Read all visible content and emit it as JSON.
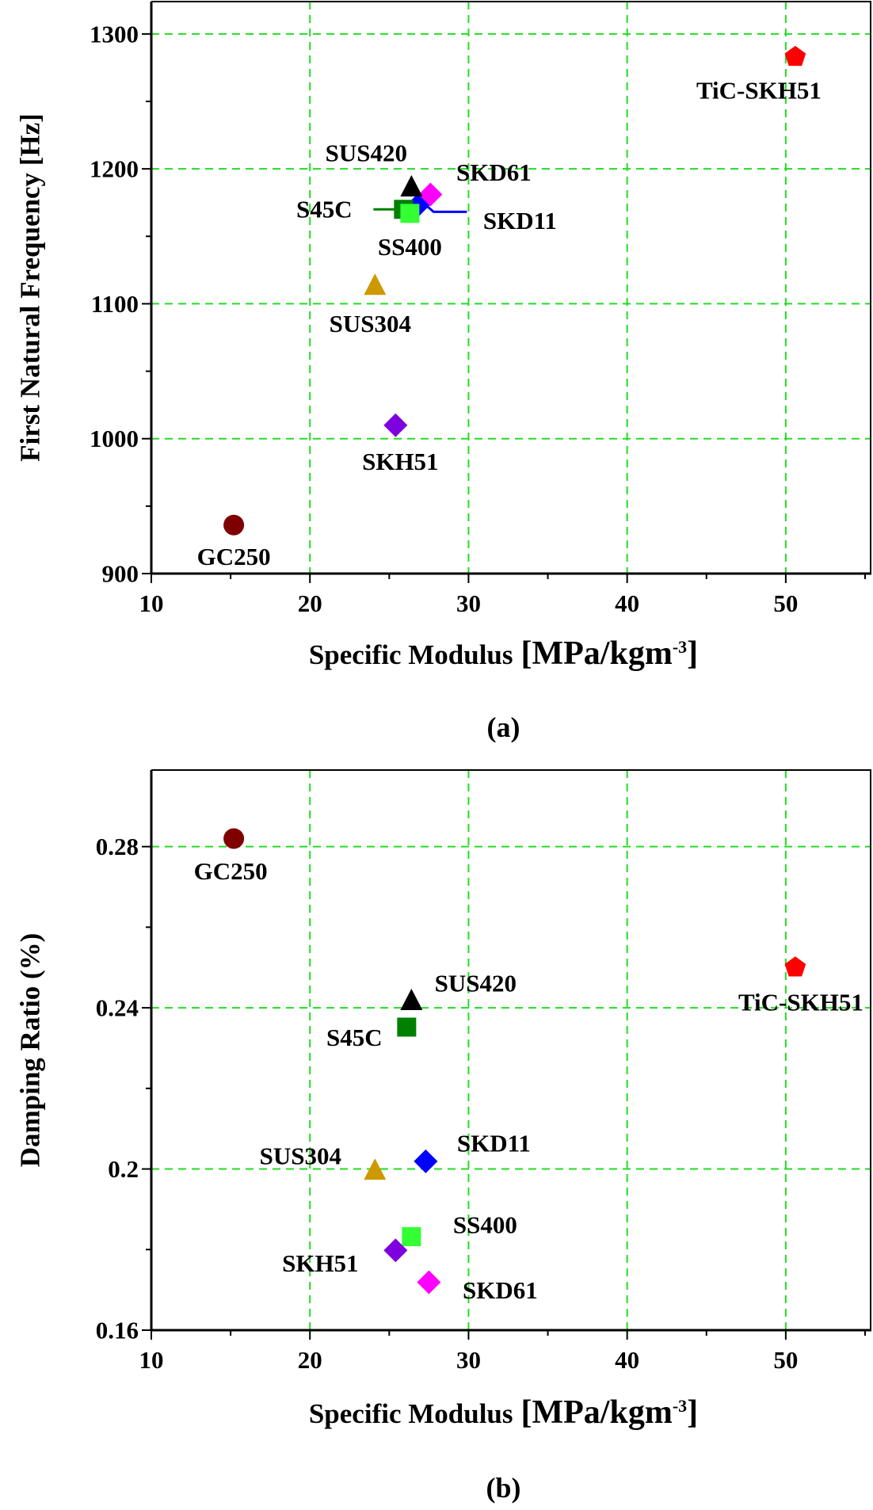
{
  "colors": {
    "grid": "#22dd22",
    "axis": "#000000"
  },
  "chart_data": [
    {
      "type": "scatter",
      "caption": "(a)",
      "xlabel": "Specific Modulus",
      "xlabel_unit": "[MPa/kgm",
      "xlabel_sup": "-3",
      "xlabel_close": "]",
      "ylabel": "First Natural Frequency [Hz]",
      "xlim": [
        10,
        55.4
      ],
      "ylim": [
        900,
        1324
      ],
      "xticks": [
        10,
        20,
        30,
        40,
        50
      ],
      "yticks": [
        900,
        1000,
        1100,
        1200,
        1300
      ],
      "xtick_labels": [
        "10",
        "20",
        "30",
        "40",
        "50"
      ],
      "ytick_labels": [
        "900",
        "1000",
        "1100",
        "1200",
        "1300"
      ],
      "grid": true,
      "points": [
        {
          "name": "GC250",
          "x": 15.2,
          "y": 936,
          "marker": "circle",
          "color": "#7f0000"
        },
        {
          "name": "SKH51",
          "x": 25.4,
          "y": 1010,
          "marker": "diamond",
          "color": "#7f00df"
        },
        {
          "name": "SUS304",
          "x": 24.1,
          "y": 1113,
          "marker": "triangle",
          "color": "#cc9900"
        },
        {
          "name": "SKD11",
          "x": 26.9,
          "y": 1174,
          "marker": "diamond",
          "color": "#0000ff"
        },
        {
          "name": "S45C",
          "x": 25.9,
          "y": 1170,
          "marker": "square",
          "color": "#008000"
        },
        {
          "name": "SS400",
          "x": 26.3,
          "y": 1167,
          "marker": "square",
          "color": "#33ff33"
        },
        {
          "name": "SKD61",
          "x": 27.6,
          "y": 1181,
          "marker": "diamond",
          "color": "#ff00ff"
        },
        {
          "name": "SUS420",
          "x": 26.4,
          "y": 1186,
          "marker": "triangle",
          "color": "#000000"
        },
        {
          "name": "TiC-SKH51",
          "x": 50.6,
          "y": 1283,
          "marker": "pentagon",
          "color": "#ff0000"
        }
      ]
    },
    {
      "type": "scatter",
      "caption": "(b)",
      "xlabel": "Specific Modulus",
      "xlabel_unit": "[MPa/kgm",
      "xlabel_sup": "-3",
      "xlabel_close": "]",
      "ylabel": "Damping Ratio (%)",
      "xlim": [
        10,
        55.4
      ],
      "ylim": [
        0.16,
        0.299
      ],
      "xticks": [
        10,
        20,
        30,
        40,
        50
      ],
      "yticks": [
        0.16,
        0.2,
        0.24,
        0.28
      ],
      "xtick_labels": [
        "10",
        "20",
        "30",
        "40",
        "50"
      ],
      "ytick_labels": [
        "0.16",
        "0.2",
        "0.24",
        "0.28"
      ],
      "grid": true,
      "points": [
        {
          "name": "GC250",
          "x": 15.2,
          "y": 0.282,
          "marker": "circle",
          "color": "#7f0000"
        },
        {
          "name": "TiC-SKH51",
          "x": 50.6,
          "y": 0.25,
          "marker": "pentagon",
          "color": "#ff0000"
        },
        {
          "name": "SUS420",
          "x": 26.4,
          "y": 0.2416,
          "marker": "triangle",
          "color": "#000000"
        },
        {
          "name": "S45C",
          "x": 26.1,
          "y": 0.2352,
          "marker": "square",
          "color": "#008000"
        },
        {
          "name": "SKD11",
          "x": 27.3,
          "y": 0.2019,
          "marker": "diamond",
          "color": "#0000ff"
        },
        {
          "name": "SUS304",
          "x": 24.1,
          "y": 0.1995,
          "marker": "triangle",
          "color": "#cc9900"
        },
        {
          "name": "SS400",
          "x": 26.4,
          "y": 0.1832,
          "marker": "square",
          "color": "#33ff33"
        },
        {
          "name": "SKH51",
          "x": 25.4,
          "y": 0.1798,
          "marker": "diamond",
          "color": "#7f00df"
        },
        {
          "name": "SKD61",
          "x": 27.5,
          "y": 0.1719,
          "marker": "diamond",
          "color": "#ff00ff"
        }
      ]
    }
  ]
}
